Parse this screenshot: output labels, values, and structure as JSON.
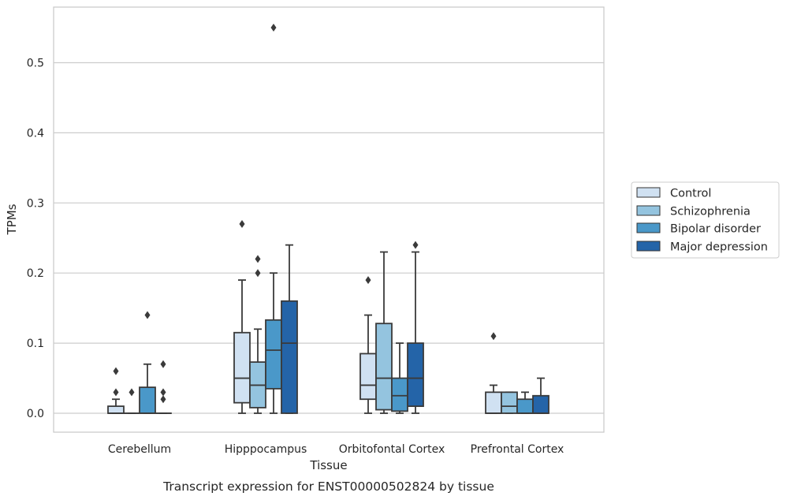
{
  "chart_data": {
    "type": "box",
    "title": "Transcript expression for ENST00000502824 by tissue",
    "xlabel": "Tissue",
    "ylabel": "TPMs",
    "ylim": [
      -0.027,
      0.582
    ],
    "yticks": [
      "0.0",
      "0.1",
      "0.2",
      "0.3",
      "0.4",
      "0.5"
    ],
    "ytick_values": [
      0.0,
      0.1,
      0.2,
      0.3,
      0.4,
      0.5
    ],
    "grid": true,
    "legend_position": "right",
    "categories": [
      "Cerebellum",
      "Hipppocampus",
      "Orbitofontal Cortex",
      "Prefrontal Cortex"
    ],
    "series": [
      {
        "name": "Control",
        "color": "#d0e1f2",
        "boxes": [
          {
            "q1": 0.0,
            "median": 0.0,
            "q3": 0.01,
            "whislo": 0.0,
            "whishi": 0.02,
            "fliers": [
              0.03,
              0.06
            ]
          },
          {
            "q1": 0.015,
            "median": 0.05,
            "q3": 0.115,
            "whislo": 0.0,
            "whishi": 0.19,
            "fliers": [
              0.27
            ]
          },
          {
            "q1": 0.02,
            "median": 0.04,
            "q3": 0.085,
            "whislo": 0.0,
            "whishi": 0.14,
            "fliers": [
              0.19
            ]
          },
          {
            "q1": 0.0,
            "median": 0.0,
            "q3": 0.03,
            "whislo": 0.0,
            "whishi": 0.04,
            "fliers": [
              0.11
            ]
          }
        ]
      },
      {
        "name": "Schizophrenia",
        "color": "#94c4df",
        "boxes": [
          {
            "q1": 0.0,
            "median": 0.0,
            "q3": 0.0,
            "whislo": 0.0,
            "whishi": 0.0,
            "fliers": [
              0.03
            ]
          },
          {
            "q1": 0.008,
            "median": 0.04,
            "q3": 0.073,
            "whislo": 0.0,
            "whishi": 0.12,
            "fliers": [
              0.2,
              0.22
            ]
          },
          {
            "q1": 0.005,
            "median": 0.05,
            "q3": 0.128,
            "whislo": 0.0,
            "whishi": 0.23,
            "fliers": []
          },
          {
            "q1": 0.0,
            "median": 0.01,
            "q3": 0.03,
            "whislo": 0.0,
            "whishi": 0.03,
            "fliers": []
          }
        ]
      },
      {
        "name": "Bipolar disorder",
        "color": "#4a98c9",
        "boxes": [
          {
            "q1": 0.0,
            "median": 0.0,
            "q3": 0.037,
            "whislo": 0.0,
            "whishi": 0.07,
            "fliers": [
              0.14
            ]
          },
          {
            "q1": 0.035,
            "median": 0.09,
            "q3": 0.133,
            "whislo": 0.0,
            "whishi": 0.2,
            "fliers": [
              0.55
            ]
          },
          {
            "q1": 0.003,
            "median": 0.025,
            "q3": 0.05,
            "whislo": 0.0,
            "whishi": 0.1,
            "fliers": []
          },
          {
            "q1": 0.0,
            "median": 0.0,
            "q3": 0.02,
            "whislo": 0.0,
            "whishi": 0.03,
            "fliers": []
          }
        ]
      },
      {
        "name": "Major depression",
        "color": "#2464a8",
        "boxes": [
          {
            "q1": 0.0,
            "median": 0.0,
            "q3": 0.0,
            "whislo": 0.0,
            "whishi": 0.0,
            "fliers": [
              0.02,
              0.03,
              0.07
            ]
          },
          {
            "q1": 0.0,
            "median": 0.1,
            "q3": 0.16,
            "whislo": 0.0,
            "whishi": 0.24,
            "fliers": []
          },
          {
            "q1": 0.01,
            "median": 0.05,
            "q3": 0.1,
            "whislo": 0.0,
            "whishi": 0.23,
            "fliers": [
              0.24
            ]
          },
          {
            "q1": 0.0,
            "median": 0.0,
            "q3": 0.025,
            "whislo": 0.0,
            "whishi": 0.05,
            "fliers": []
          }
        ]
      }
    ]
  }
}
